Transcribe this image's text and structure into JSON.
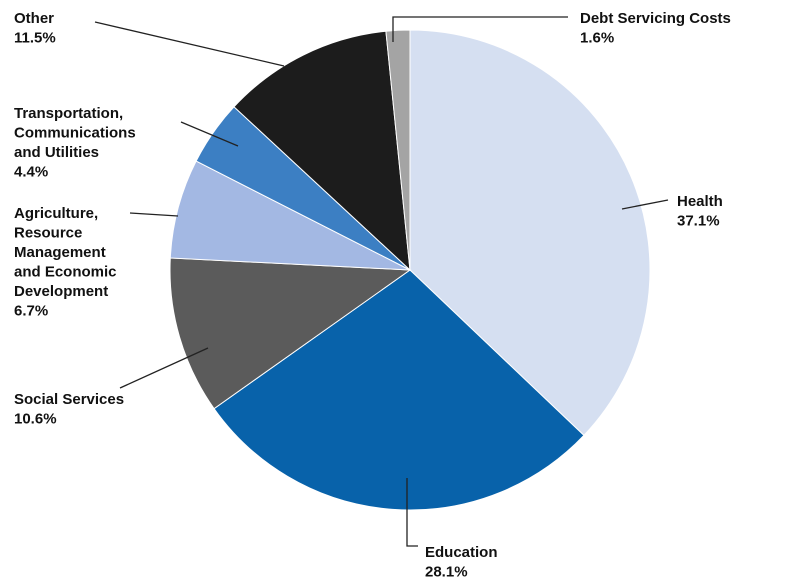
{
  "chart_data": {
    "type": "pie",
    "title": "",
    "start_angle_deg": 0,
    "direction": "clockwise",
    "slices": [
      {
        "label": [
          "Health",
          "37.1%"
        ],
        "value": 37.1,
        "color": "#d5dff1"
      },
      {
        "label": [
          "Education",
          "28.1%"
        ],
        "value": 28.1,
        "color": "#0862aa"
      },
      {
        "label": [
          "Social Services",
          "10.6%"
        ],
        "value": 10.6,
        "color": "#5b5b5b"
      },
      {
        "label": [
          "Agriculture,",
          "Resource",
          "Management",
          "and Economic",
          "Development",
          "6.7%"
        ],
        "value": 6.7,
        "color": "#a3b8e3"
      },
      {
        "label": [
          "Transportation,",
          "Communications",
          "and Utilities",
          "4.4%"
        ],
        "value": 4.4,
        "color": "#3c7fc3"
      },
      {
        "label": [
          "Other",
          "11.5%"
        ],
        "value": 11.5,
        "color": "#1c1c1c"
      },
      {
        "label": [
          "Debt Servicing Costs",
          "1.6%"
        ],
        "value": 1.6,
        "color": "#a4a4a4"
      }
    ]
  }
}
